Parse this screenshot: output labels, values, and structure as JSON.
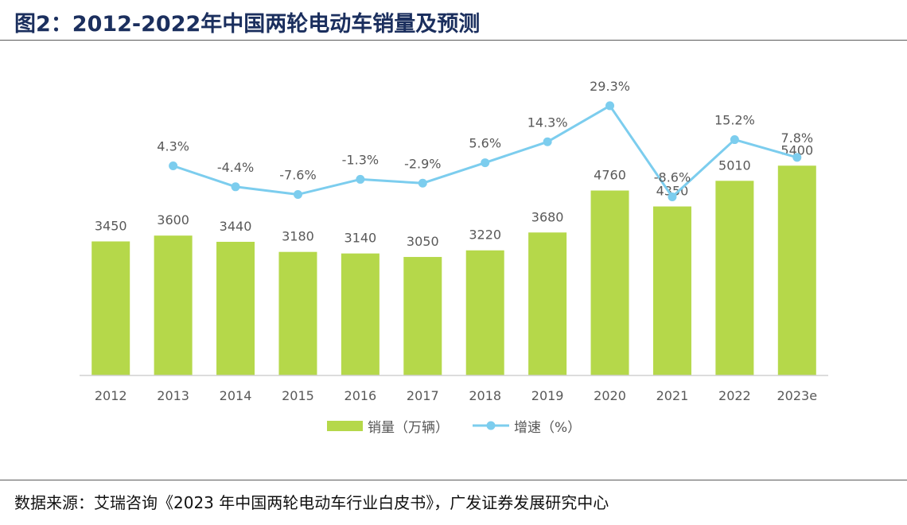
{
  "figure": {
    "title": "图2：2012-2022年中国两轮电动车销量及预测",
    "source": "数据来源：艾瑞咨询《2023 年中国两轮电动车行业白皮书》，广发证券发展研究中心"
  },
  "chart_data": {
    "type": "bar",
    "categories": [
      "2012",
      "2013",
      "2014",
      "2015",
      "2016",
      "2017",
      "2018",
      "2019",
      "2020",
      "2021",
      "2022",
      "2023e"
    ],
    "series": [
      {
        "name": "销量（万辆）",
        "type": "bar",
        "color": "#b5d84a",
        "values": [
          3450,
          3600,
          3440,
          3180,
          3140,
          3050,
          3220,
          3680,
          4760,
          4350,
          5010,
          5400
        ],
        "labels": [
          "3450",
          "3600",
          "3440",
          "3180",
          "3140",
          "3050",
          "3220",
          "3680",
          "4760",
          "4350",
          "5010",
          "5400"
        ]
      },
      {
        "name": "增速（%）",
        "type": "line",
        "color": "#7ccdee",
        "values": [
          null,
          4.3,
          -4.4,
          -7.6,
          -1.3,
          -2.9,
          5.6,
          14.3,
          29.3,
          -8.6,
          15.2,
          7.8
        ],
        "labels": [
          "",
          "4.3%",
          "-4.4%",
          "-7.6%",
          "-1.3%",
          "-2.9%",
          "5.6%",
          "14.3%",
          "29.3%",
          "-8.6%",
          "15.2%",
          "7.8%"
        ]
      }
    ],
    "legend_position": "bottom-center",
    "grid": false,
    "y_axis_visible": false
  }
}
